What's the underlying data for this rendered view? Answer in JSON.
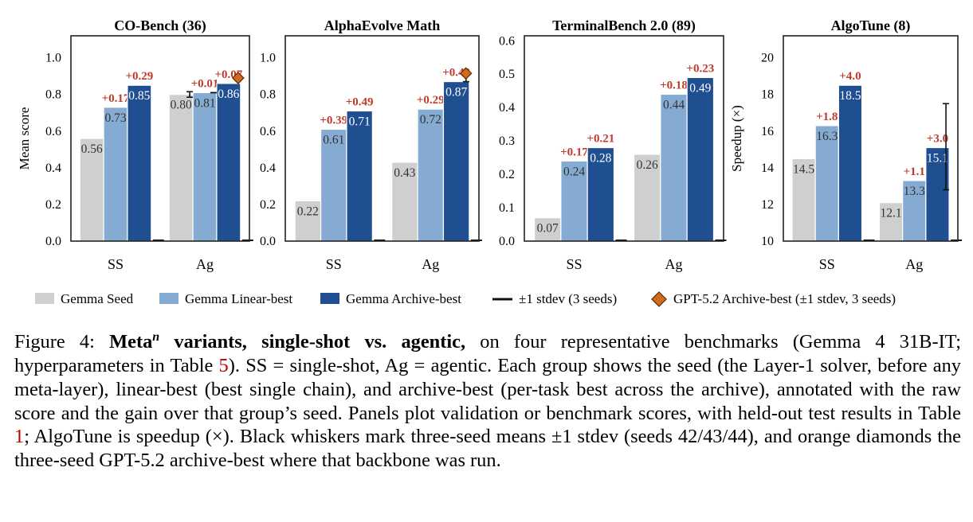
{
  "colors": {
    "seed": "#cfcfcf",
    "linear": "#86abd3",
    "archive": "#1f4e91",
    "gain": "#c0392b",
    "gpt": "#d2691e"
  },
  "legend": {
    "seed": "Gemma Seed",
    "linear": "Gemma Linear-best",
    "archive": "Gemma Archive-best",
    "stdev": "±1 stdev (3 seeds)",
    "gpt": "GPT-5.2 Archive-best (±1 stdev, 3 seeds)"
  },
  "chart_data": [
    {
      "type": "bar",
      "title": "CO-Bench (36)",
      "ylabel": "Mean score",
      "ylim": [
        0,
        1.12
      ],
      "yticks": [
        "0.0",
        "0.2",
        "0.4",
        "0.6",
        "0.8",
        "1.0"
      ],
      "categories": [
        "SS",
        "Ag"
      ],
      "series": [
        {
          "key": "seed",
          "values": [
            0.56,
            0.8
          ],
          "labels": [
            "0.56",
            "0.80"
          ],
          "gains": [
            null,
            null
          ]
        },
        {
          "key": "linear",
          "values": [
            0.73,
            0.81
          ],
          "labels": [
            "0.73",
            "0.81"
          ],
          "gains": [
            "+0.17",
            "+0.01"
          ]
        },
        {
          "key": "archive",
          "values": [
            0.85,
            0.86
          ],
          "labels": [
            "0.85",
            "0.86"
          ],
          "gains": [
            "+0.29",
            "+0.07"
          ]
        }
      ],
      "whiskers": [
        {
          "category": 1,
          "series": "seed",
          "low": 0.785,
          "high": 0.815
        },
        {
          "category": 1,
          "series": "linear",
          "low": 0.81,
          "high": 0.81
        }
      ],
      "gpt": [
        {
          "category": 1,
          "series": "archive",
          "value": 0.89
        }
      ]
    },
    {
      "type": "bar",
      "title": "AlphaEvolve Math",
      "ylabel": "",
      "ylim": [
        0,
        1.12
      ],
      "yticks": [
        "0.0",
        "0.2",
        "0.4",
        "0.6",
        "0.8",
        "1.0"
      ],
      "categories": [
        "SS",
        "Ag"
      ],
      "series": [
        {
          "key": "seed",
          "values": [
            0.22,
            0.43
          ],
          "labels": [
            "0.22",
            "0.43"
          ],
          "gains": [
            null,
            null
          ]
        },
        {
          "key": "linear",
          "values": [
            0.61,
            0.72
          ],
          "labels": [
            "0.61",
            "0.72"
          ],
          "gains": [
            "+0.39",
            "+0.29"
          ]
        },
        {
          "key": "archive",
          "values": [
            0.71,
            0.87
          ],
          "labels": [
            "0.71",
            "0.87"
          ],
          "gains": [
            "+0.49",
            "+0.43"
          ]
        }
      ],
      "whiskers": [
        {
          "category": 1,
          "series": "archive",
          "low": 0.87,
          "high": 0.915
        }
      ],
      "gpt": [
        {
          "category": 1,
          "series": "archive",
          "value": 0.915
        }
      ]
    },
    {
      "type": "bar",
      "title": "TerminalBench 2.0 (89)",
      "ylabel": "",
      "ylim": [
        0,
        0.615
      ],
      "yticks": [
        "0.0",
        "0.1",
        "0.2",
        "0.3",
        "0.4",
        "0.5",
        "0.6"
      ],
      "categories": [
        "SS",
        "Ag"
      ],
      "series": [
        {
          "key": "seed",
          "values": [
            0.07,
            0.26
          ],
          "labels": [
            "0.07",
            "0.26"
          ],
          "gains": [
            null,
            null
          ]
        },
        {
          "key": "linear",
          "values": [
            0.24,
            0.44
          ],
          "labels": [
            "0.24",
            "0.44"
          ],
          "gains": [
            "+0.17",
            "+0.18"
          ]
        },
        {
          "key": "archive",
          "values": [
            0.28,
            0.49
          ],
          "labels": [
            "0.28",
            "0.49"
          ],
          "gains": [
            "+0.21",
            "+0.23"
          ]
        }
      ],
      "whiskers": [],
      "gpt": []
    },
    {
      "type": "bar",
      "title": "AlgoTune (8)",
      "ylabel": "Speedup (×)",
      "ylim": [
        10,
        21.2
      ],
      "yticks": [
        "10",
        "12",
        "14",
        "16",
        "18",
        "20"
      ],
      "categories": [
        "SS",
        "Ag"
      ],
      "series": [
        {
          "key": "seed",
          "values": [
            14.5,
            12.1
          ],
          "labels": [
            "14.5",
            "12.1"
          ],
          "gains": [
            null,
            null
          ]
        },
        {
          "key": "linear",
          "values": [
            16.3,
            13.3
          ],
          "labels": [
            "16.3",
            "13.3"
          ],
          "gains": [
            "+1.8",
            "+1.1"
          ]
        },
        {
          "key": "archive",
          "values": [
            18.5,
            15.1
          ],
          "labels": [
            "18.5",
            "15.1"
          ],
          "gains": [
            "+4.0",
            "+3.0"
          ]
        }
      ],
      "whiskers": [
        {
          "category": 1,
          "series": "archive",
          "low": 12.8,
          "high": 17.5
        }
      ],
      "gpt": []
    }
  ],
  "caption": {
    "label": "Figure 4:",
    "bold_prefix": "Meta",
    "bold_sup": "n",
    "bold_suffix": " variants, single-shot vs. agentic,",
    "text_a": " on four representative benchmarks (Gemma 4 31B-IT; hyperparameters in Table ",
    "ref_a": "5",
    "text_b": "). SS = single-shot, Ag = agentic. Each group shows the seed (the Layer-1 solver, before any meta-layer), linear-best (best single chain), and archive-best (per-task best across the archive), annotated with the raw score and the gain over that group’s seed. Panels plot validation or benchmark scores, with held-out test results in Table ",
    "ref_b": "1",
    "text_c": "; AlgoTune is speedup (×). Black whiskers mark three-seed means ±1 stdev (seeds 42/43/44), and orange diamonds the three-seed GPT-5.2 archive-best where that backbone was run."
  }
}
